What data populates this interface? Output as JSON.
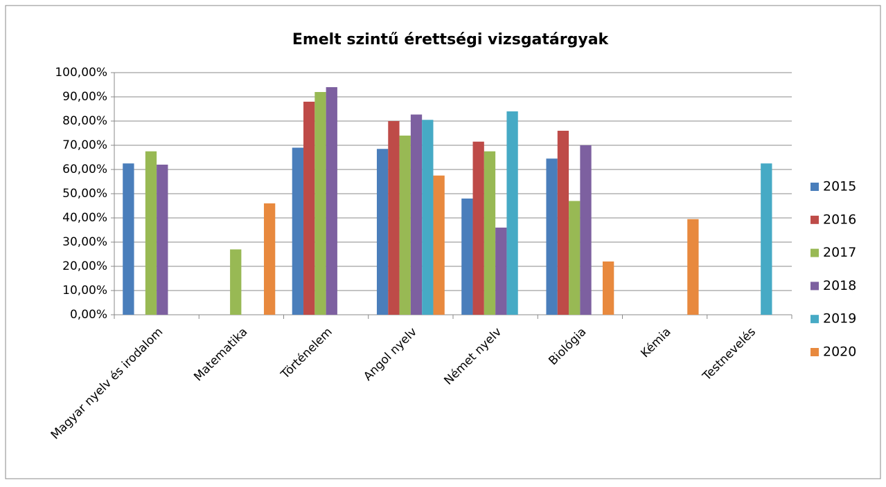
{
  "chart_data": {
    "type": "bar",
    "title": "Emelt szintű érettségi vizsgatárgyak",
    "categories": [
      "Magyar nyelv és irodalom",
      "Matematika",
      "Történelem",
      "Angol nyelv",
      "Német nyelv",
      "Biológia",
      "Kémia",
      "Testnevelés"
    ],
    "series": [
      {
        "name": "2015",
        "color": "#4a7ebb",
        "values": [
          62.5,
          null,
          69,
          68.5,
          48,
          64.5,
          null,
          null
        ]
      },
      {
        "name": "2016",
        "color": "#be4b48",
        "values": [
          null,
          null,
          88,
          80,
          71.5,
          76,
          null,
          null
        ]
      },
      {
        "name": "2017",
        "color": "#98b954",
        "values": [
          67.5,
          27,
          92,
          74,
          67.5,
          47,
          null,
          null
        ]
      },
      {
        "name": "2018",
        "color": "#7d60a0",
        "values": [
          62,
          null,
          94,
          82.7,
          36,
          70,
          null,
          null
        ]
      },
      {
        "name": "2019",
        "color": "#46aac5",
        "values": [
          null,
          null,
          null,
          80.5,
          84,
          null,
          null,
          62.5
        ]
      },
      {
        "name": "2020",
        "color": "#e8893e",
        "values": [
          null,
          46,
          null,
          57.5,
          null,
          22,
          39.5,
          null
        ]
      }
    ],
    "ylim": [
      0,
      100
    ],
    "yticks": [
      {
        "value": 0,
        "label": "0,00%"
      },
      {
        "value": 10,
        "label": "10,00%"
      },
      {
        "value": 20,
        "label": "20,00%"
      },
      {
        "value": 30,
        "label": "30,00%"
      },
      {
        "value": 40,
        "label": "40,00%"
      },
      {
        "value": 50,
        "label": "50,00%"
      },
      {
        "value": 60,
        "label": "60,00%"
      },
      {
        "value": 70,
        "label": "70,00%"
      },
      {
        "value": 80,
        "label": "80,00%"
      },
      {
        "value": 90,
        "label": "90,00%"
      },
      {
        "value": 100,
        "label": "100,00%"
      }
    ],
    "grid": true,
    "legend": "right"
  }
}
